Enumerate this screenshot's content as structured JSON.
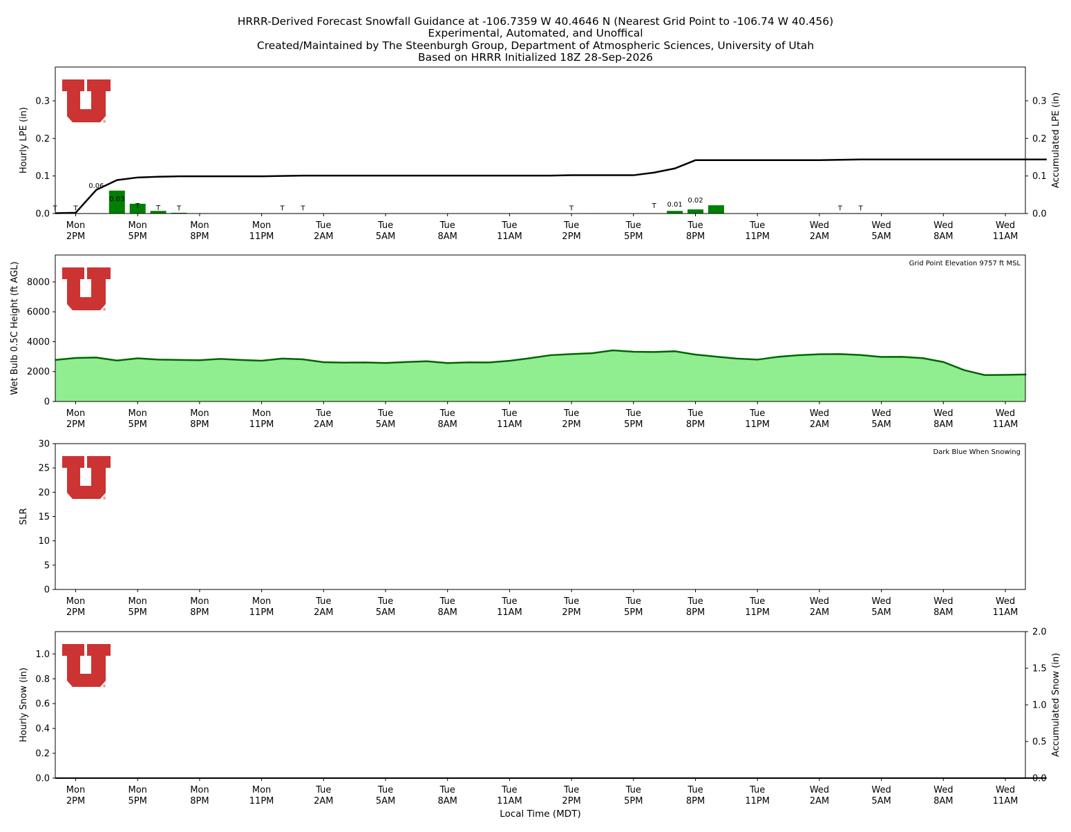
{
  "header": {
    "title_lines": [
      "HRRR-Derived Forecast Snowfall Guidance at -106.7359 W 40.4646 N (Nearest Grid Point to -106.74 W 40.456)",
      "Experimental, Automated, and Unoffical",
      "Created/Maintained by The Steenburgh Group, Department of Atmospheric Sciences, University of Utah",
      "Based on HRRR Initialized 18Z 28-Sep-2026"
    ]
  },
  "colors": {
    "logo": "#cc3333",
    "lpe_bar": "#008000",
    "accum_line": "#000000",
    "wetbulb_fill": "#90ee90",
    "wetbulb_line": "#006400"
  },
  "logo_icon": "university-of-utah-u-logo",
  "time_axis": {
    "xlabel": "Local Time (MDT)",
    "ticks": [
      [
        "Mon",
        "2PM"
      ],
      [
        "Mon",
        "5PM"
      ],
      [
        "Mon",
        "8PM"
      ],
      [
        "Mon",
        "11PM"
      ],
      [
        "Tue",
        "2AM"
      ],
      [
        "Tue",
        "5AM"
      ],
      [
        "Tue",
        "8AM"
      ],
      [
        "Tue",
        "11AM"
      ],
      [
        "Tue",
        "2PM"
      ],
      [
        "Tue",
        "5PM"
      ],
      [
        "Tue",
        "8PM"
      ],
      [
        "Tue",
        "11PM"
      ],
      [
        "Wed",
        "2AM"
      ],
      [
        "Wed",
        "5AM"
      ],
      [
        "Wed",
        "8AM"
      ],
      [
        "Wed",
        "11AM"
      ]
    ]
  },
  "chart_data": [
    {
      "id": "lpe",
      "type": "bar",
      "ylabel": "Hourly LPE (in)",
      "ylabel_right": "Accumulated LPE (in)",
      "ylim": [
        0,
        0.39
      ],
      "yticks": [
        "0.0",
        "0.1",
        "0.2",
        "0.3"
      ],
      "ylim_right": [
        0,
        0.39
      ],
      "yticks_right": [
        "0.0",
        "0.1",
        "0.2",
        "0.3"
      ],
      "x_hours": [
        0,
        1,
        2,
        3,
        4,
        5,
        6,
        7,
        8,
        9,
        10,
        11,
        12,
        13,
        14,
        15,
        16,
        17,
        18,
        19,
        20,
        21,
        22,
        23,
        24,
        25,
        26,
        27,
        28,
        29,
        30,
        31,
        32,
        33,
        34,
        35,
        36,
        37,
        38,
        39,
        40,
        41,
        42,
        43,
        44,
        45,
        46,
        47,
        48
      ],
      "hourly_lpe": [
        0.001,
        0.001,
        0.061,
        0.026,
        0.007,
        0.002,
        0.001,
        0,
        0,
        0,
        0,
        0.001,
        0.001,
        0,
        0,
        0,
        0,
        0,
        0,
        0,
        0,
        0,
        0,
        0,
        0,
        0.001,
        0,
        0,
        0,
        0.007,
        0.011,
        0.022,
        0,
        0,
        0,
        0,
        0,
        0,
        0.001,
        0.001,
        0,
        0,
        0,
        0,
        0,
        0,
        0,
        0,
        0
      ],
      "bar_labels": [
        "T",
        "T",
        "0.06",
        "0.03",
        "T",
        "T",
        "T",
        "",
        "",
        "",
        "",
        "T",
        "T",
        "",
        "",
        "",
        "",
        "",
        "",
        "",
        "",
        "",
        "",
        "",
        "",
        "T",
        "",
        "",
        "",
        "T",
        "0.01",
        "0.02",
        "",
        "",
        "",
        "",
        "",
        "",
        "T",
        "T",
        "",
        "",
        "",
        "",
        "",
        "",
        "",
        "",
        ""
      ],
      "accumulated_lpe": [
        0.001,
        0.002,
        0.063,
        0.089,
        0.096,
        0.098,
        0.099,
        0.099,
        0.099,
        0.099,
        0.099,
        0.1,
        0.101,
        0.101,
        0.101,
        0.101,
        0.101,
        0.101,
        0.101,
        0.101,
        0.101,
        0.101,
        0.101,
        0.101,
        0.101,
        0.102,
        0.102,
        0.102,
        0.102,
        0.109,
        0.12,
        0.142,
        0.142,
        0.142,
        0.142,
        0.142,
        0.142,
        0.142,
        0.143,
        0.144,
        0.144,
        0.144,
        0.144,
        0.144,
        0.144,
        0.144,
        0.144,
        0.144,
        0.144
      ]
    },
    {
      "id": "wetbulb",
      "type": "area",
      "ylabel": "Wet Bulb 0.5C Height (ft AGL)",
      "annotation": "Grid Point Elevation 9757 ft MSL",
      "ylim": [
        0,
        9800
      ],
      "yticks": [
        "0",
        "2000",
        "4000",
        "6000",
        "8000"
      ],
      "x_hours": [
        0,
        1,
        2,
        3,
        4,
        5,
        6,
        7,
        8,
        9,
        10,
        11,
        12,
        13,
        14,
        15,
        16,
        17,
        18,
        19,
        20,
        21,
        22,
        23,
        24,
        25,
        26,
        27,
        28,
        29,
        30,
        31,
        32,
        33,
        34,
        35,
        36,
        37,
        38,
        39,
        40,
        41,
        42,
        43,
        44,
        45,
        46,
        47,
        48
      ],
      "values": [
        2780,
        2910,
        2940,
        2740,
        2890,
        2800,
        2780,
        2760,
        2850,
        2780,
        2730,
        2870,
        2820,
        2630,
        2600,
        2610,
        2580,
        2640,
        2690,
        2570,
        2620,
        2610,
        2720,
        2900,
        3100,
        3170,
        3230,
        3420,
        3330,
        3310,
        3360,
        3140,
        3000,
        2870,
        2800,
        2990,
        3100,
        3160,
        3170,
        3110,
        2980,
        2990,
        2900,
        2640,
        2100,
        1770,
        1780,
        1810,
        1860
      ]
    },
    {
      "id": "slr",
      "type": "line",
      "ylabel": "SLR",
      "annotation": "Dark Blue When Snowing",
      "ylim": [
        0,
        30
      ],
      "yticks": [
        "0",
        "5",
        "10",
        "15",
        "20",
        "25",
        "30"
      ],
      "values": []
    },
    {
      "id": "snow",
      "type": "bar",
      "ylabel": "Hourly Snow (in)",
      "ylabel_right": "Accumulated Snow (in)",
      "ylim": [
        0,
        1.18
      ],
      "yticks": [
        "0.0",
        "0.2",
        "0.4",
        "0.6",
        "0.8",
        "1.0"
      ],
      "ylim_right": [
        0,
        2.0
      ],
      "yticks_right": [
        "0.0",
        "0.5",
        "1.0",
        "1.5",
        "2.0"
      ],
      "x_hours": [
        0,
        1,
        2,
        3,
        4,
        5,
        6,
        7,
        8,
        9,
        10,
        11,
        12,
        13,
        14,
        15,
        16,
        17,
        18,
        19,
        20,
        21,
        22,
        23,
        24,
        25,
        26,
        27,
        28,
        29,
        30,
        31,
        32,
        33,
        34,
        35,
        36,
        37,
        38,
        39,
        40,
        41,
        42,
        43,
        44,
        45,
        46,
        47,
        48
      ],
      "hourly_snow": [
        0,
        0,
        0,
        0,
        0,
        0,
        0,
        0,
        0,
        0,
        0,
        0,
        0,
        0,
        0,
        0,
        0,
        0,
        0,
        0,
        0,
        0,
        0,
        0,
        0,
        0,
        0,
        0,
        0,
        0,
        0,
        0,
        0,
        0,
        0,
        0,
        0,
        0,
        0,
        0,
        0,
        0,
        0,
        0,
        0,
        0,
        0,
        0,
        0
      ],
      "accumulated_snow": [
        0,
        0,
        0,
        0,
        0,
        0,
        0,
        0,
        0,
        0,
        0,
        0,
        0,
        0,
        0,
        0,
        0,
        0,
        0,
        0,
        0,
        0,
        0,
        0,
        0,
        0,
        0,
        0,
        0,
        0,
        0,
        0,
        0,
        0,
        0,
        0,
        0,
        0,
        0,
        0,
        0,
        0,
        0,
        0,
        0,
        0,
        0,
        0,
        0
      ]
    }
  ]
}
